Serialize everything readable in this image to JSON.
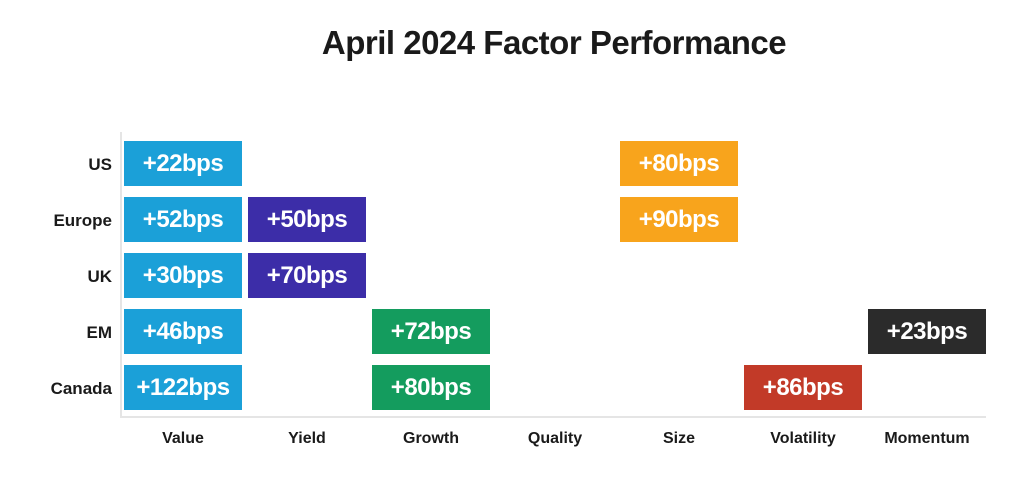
{
  "title": "April 2024 Factor Performance",
  "colors": {
    "value_blue": "#1BA0D8",
    "yield_indigo": "#3C2DA8",
    "growth_green": "#149C5E",
    "size_orange": "#F8A41C",
    "volatility_red": "#C23A28",
    "momentum_black": "#2B2B2B",
    "axis_gray": "#E5E5E5",
    "text_dark": "#1A1A1A",
    "cell_text": "#FFFFFF"
  },
  "chart_data": {
    "type": "heatmap",
    "title": "April 2024 Factor Performance",
    "unit": "bps",
    "legend_position": "none",
    "grid": "off",
    "rows": [
      "US",
      "Europe",
      "UK",
      "EM",
      "Canada"
    ],
    "columns": [
      "Value",
      "Yield",
      "Growth",
      "Quality",
      "Size",
      "Volatility",
      "Momentum"
    ],
    "cells": [
      {
        "row": "US",
        "column": "Value",
        "value": 22,
        "label": "+22bps",
        "color": "#1BA0D8"
      },
      {
        "row": "US",
        "column": "Size",
        "value": 80,
        "label": "+80bps",
        "color": "#F8A41C"
      },
      {
        "row": "Europe",
        "column": "Value",
        "value": 52,
        "label": "+52bps",
        "color": "#1BA0D8"
      },
      {
        "row": "Europe",
        "column": "Yield",
        "value": 50,
        "label": "+50bps",
        "color": "#3C2DA8"
      },
      {
        "row": "Europe",
        "column": "Size",
        "value": 90,
        "label": "+90bps",
        "color": "#F8A41C"
      },
      {
        "row": "UK",
        "column": "Value",
        "value": 30,
        "label": "+30bps",
        "color": "#1BA0D8"
      },
      {
        "row": "UK",
        "column": "Yield",
        "value": 70,
        "label": "+70bps",
        "color": "#3C2DA8"
      },
      {
        "row": "EM",
        "column": "Value",
        "value": 46,
        "label": "+46bps",
        "color": "#1BA0D8"
      },
      {
        "row": "EM",
        "column": "Growth",
        "value": 72,
        "label": "+72bps",
        "color": "#149C5E"
      },
      {
        "row": "EM",
        "column": "Momentum",
        "value": 23,
        "label": "+23bps",
        "color": "#2B2B2B"
      },
      {
        "row": "Canada",
        "column": "Value",
        "value": 122,
        "label": "+122bps",
        "color": "#1BA0D8"
      },
      {
        "row": "Canada",
        "column": "Growth",
        "value": 80,
        "label": "+80bps",
        "color": "#149C5E"
      },
      {
        "row": "Canada",
        "column": "Volatility",
        "value": 86,
        "label": "+86bps",
        "color": "#C23A28"
      }
    ]
  }
}
